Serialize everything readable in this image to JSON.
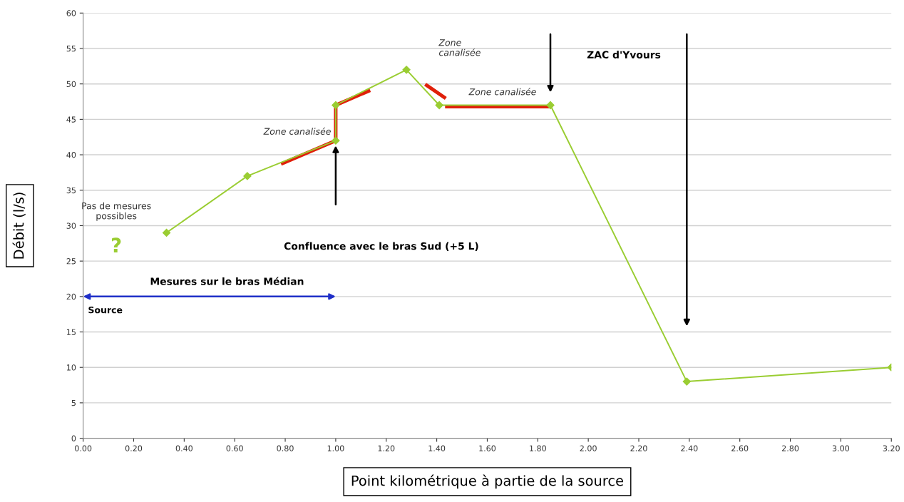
{
  "chart_data": {
    "type": "line",
    "xlabel": "Point kilométrique à partie de la source",
    "ylabel": "Débit (l/s)",
    "series": [
      {
        "color": "#9acd32",
        "x": [
          0.33,
          0.65,
          1.0,
          1.0,
          1.28,
          1.41,
          1.85,
          2.39,
          3.2
        ],
        "values": [
          29,
          37,
          42,
          47,
          52,
          47,
          47,
          8,
          10
        ],
        "marker": "diamond"
      },
      {
        "color": "#e0200a",
        "x": [
          0.79,
          1.0,
          1.0,
          1.13
        ],
        "values": [
          38.8,
          42,
          47,
          49
        ],
        "marker": "none"
      },
      {
        "color": "#e0200a",
        "x": [
          1.36,
          1.43
        ],
        "values": [
          49.8,
          48.1
        ],
        "marker": "none"
      },
      {
        "color": "#e0200a",
        "x": [
          1.44,
          1.85
        ],
        "values": [
          46.8,
          46.8
        ],
        "marker": "none"
      }
    ],
    "annotations": [
      "Pas de mesures\npossibles",
      "?",
      "Mesures sur le bras Médian",
      "Source",
      "Zone canalisée",
      "Confluence avec le bras Sud (+5 L)",
      "Zone\ncanalisée",
      "Zone canalisée",
      "ZAC d'Yvours"
    ],
    "xlim": [
      0,
      3.2
    ],
    "xticks": [
      {
        "value": 0,
        "label": "0.00"
      },
      {
        "value": 0.2,
        "label": "0.20"
      },
      {
        "value": 0.4,
        "label": "0.40"
      },
      {
        "value": 0.6,
        "label": "0.60"
      },
      {
        "value": 0.8,
        "label": "0.80"
      },
      {
        "value": 1.0,
        "label": "1.00"
      },
      {
        "value": 1.2,
        "label": "1.20"
      },
      {
        "value": 1.4,
        "label": "1.40"
      },
      {
        "value": 1.6,
        "label": "1.60"
      },
      {
        "value": 1.8,
        "label": "1.80"
      },
      {
        "value": 2.0,
        "label": "2.00"
      },
      {
        "value": 2.2,
        "label": "2.20"
      },
      {
        "value": 2.4,
        "label": "2.40"
      },
      {
        "value": 2.6,
        "label": "2.60"
      },
      {
        "value": 2.8,
        "label": "2.80"
      },
      {
        "value": 3.0,
        "label": "3.00"
      },
      {
        "value": 3.2,
        "label": "3.20"
      }
    ],
    "ylim": [
      0,
      60
    ],
    "yticks": [
      0,
      5,
      10,
      15,
      20,
      25,
      30,
      35,
      40,
      45,
      50,
      55,
      60
    ],
    "grid": "y",
    "line_style": "solid"
  }
}
